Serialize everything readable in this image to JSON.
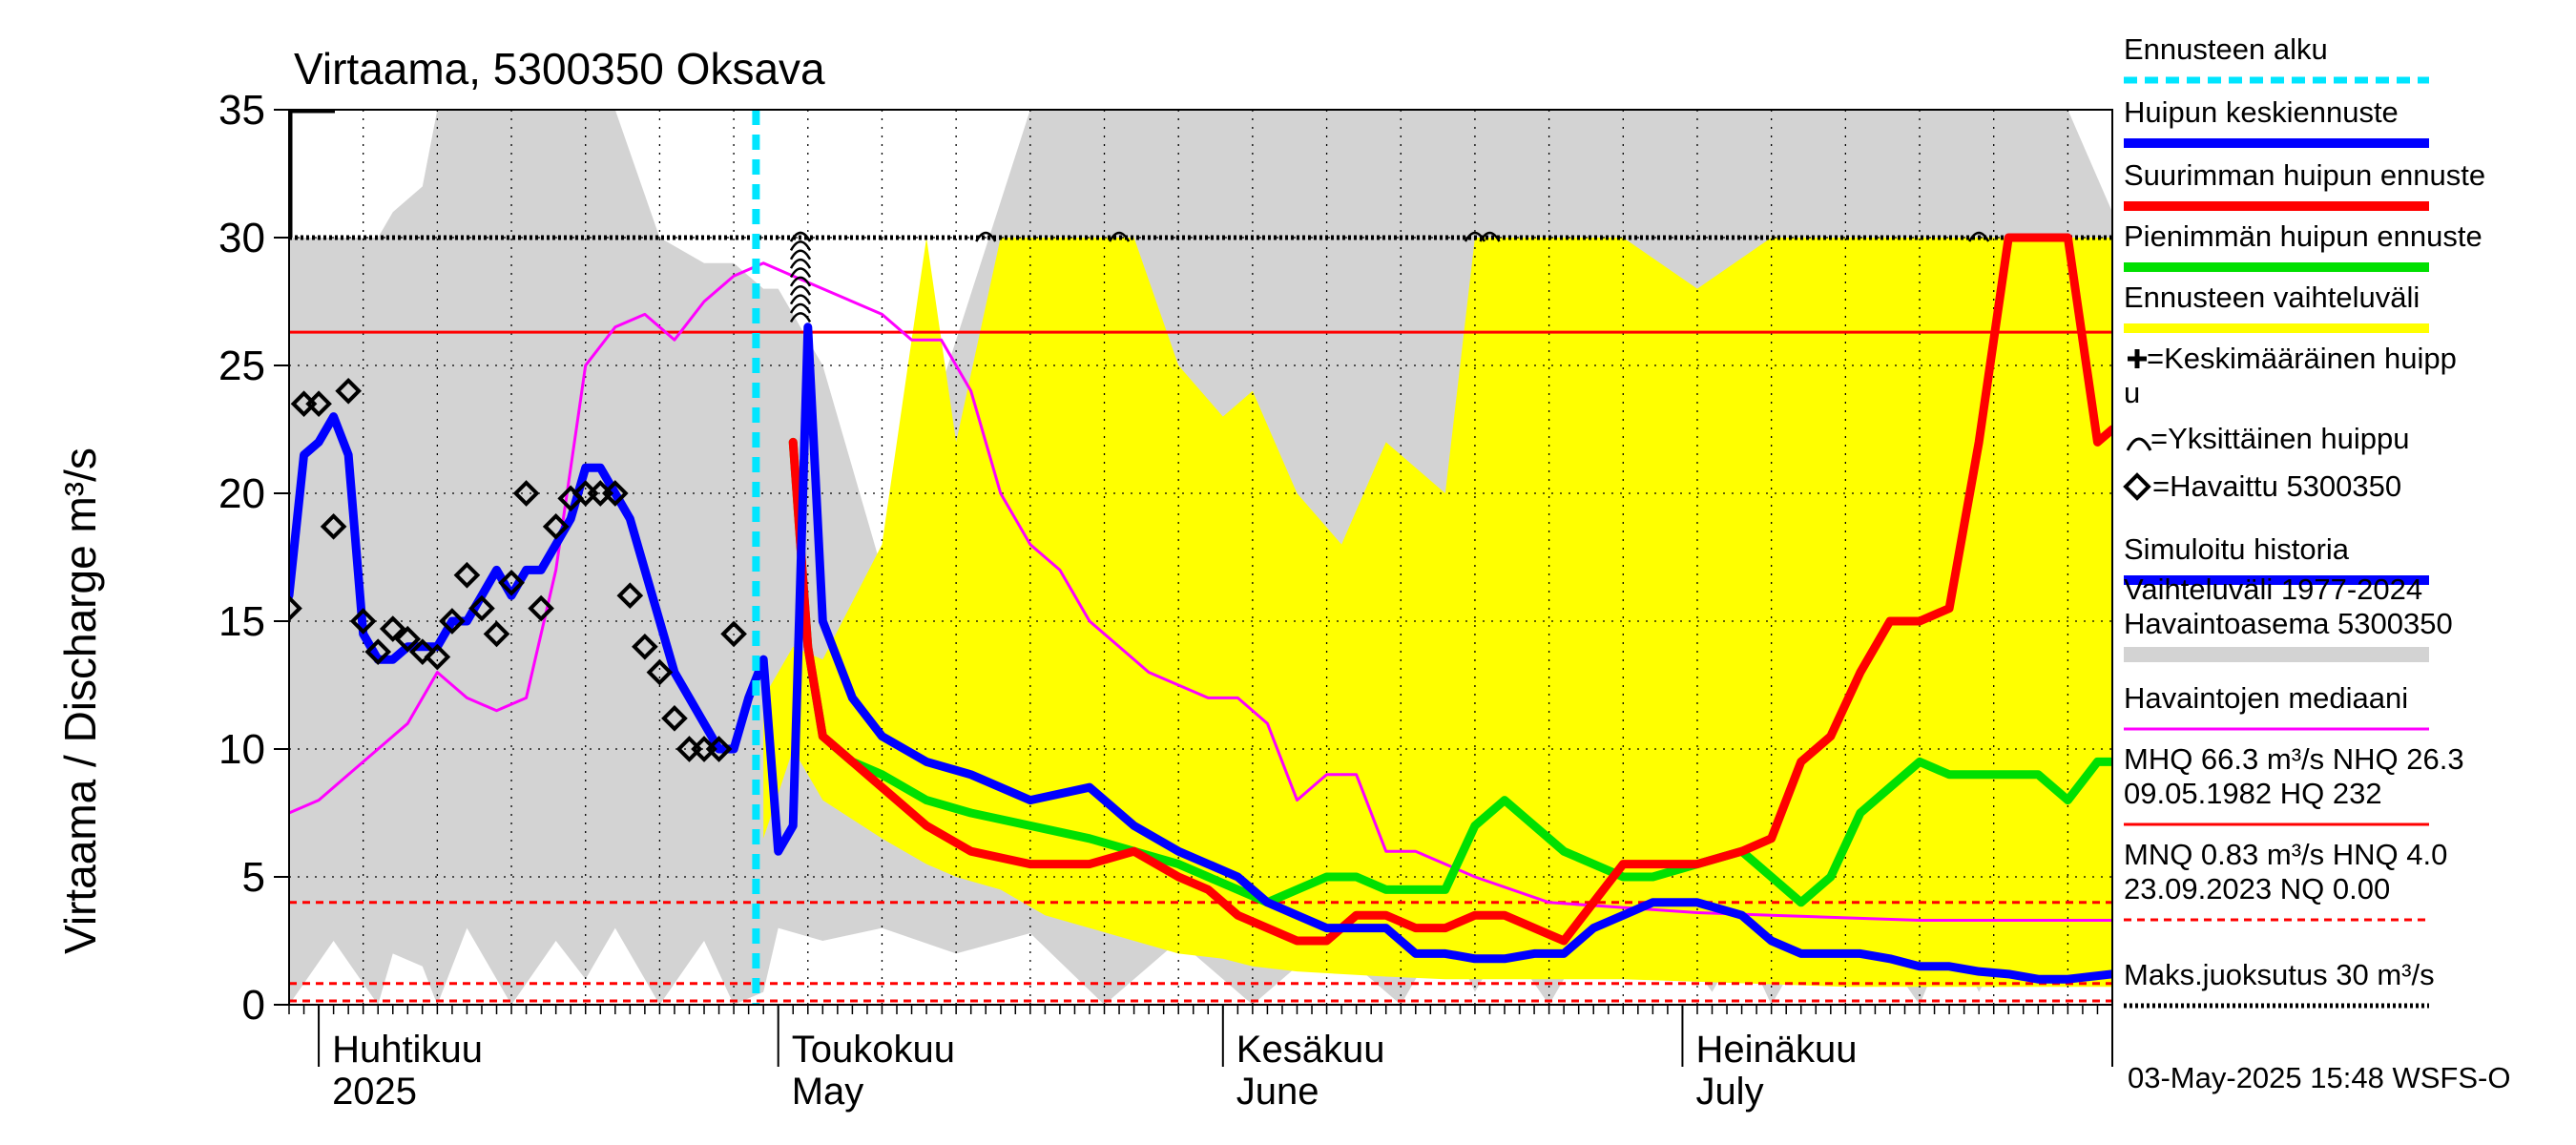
{
  "chart_data": {
    "type": "line",
    "title": "Virtaama, 5300350 Oksava",
    "ylabel": "Virtaama / Discharge   m³/s",
    "ylim": [
      0,
      35
    ],
    "yticks": [
      {
        "value": 0,
        "label": "0"
      },
      {
        "value": 5,
        "label": "5"
      },
      {
        "value": 10,
        "label": "10"
      },
      {
        "value": 15,
        "label": "15"
      },
      {
        "value": 20,
        "label": "20"
      },
      {
        "value": 25,
        "label": "25"
      },
      {
        "value": 30,
        "label": "30"
      },
      {
        "value": 35,
        "label": "35"
      }
    ],
    "x_range_days": [
      0,
      123
    ],
    "x_unit": "days since 2025-03-30",
    "month_ticks": [
      2,
      33,
      63,
      94
    ],
    "month_labels": [
      {
        "day": 2,
        "fi": "Huhtikuu",
        "en": "2025"
      },
      {
        "day": 33,
        "fi": "Toukokuu",
        "en": "May"
      },
      {
        "day": 63,
        "fi": "Kesäkuu",
        "en": "June"
      },
      {
        "day": 94,
        "fi": "Heinäkuu",
        "en": "July"
      }
    ],
    "forecast_start_day": 31.5,
    "reference_lines": [
      {
        "name": "NHQ",
        "value": 26.3,
        "style": "solid"
      },
      {
        "name": "HNQ",
        "value": 4.0,
        "style": "dashed"
      },
      {
        "name": "MNQ",
        "value": 0.83,
        "style": "dashed"
      },
      {
        "name": "NQ",
        "value": 0.0,
        "style": "dashed"
      },
      {
        "name": "Maks.juoksutus",
        "value": 30,
        "style": "dotted"
      }
    ],
    "history_band": {
      "name": "Vaihteluväli 1977-2024 Havaintoasema 5300350",
      "x": [
        0,
        3,
        6,
        7,
        9,
        10,
        12,
        15,
        18,
        20,
        22,
        25,
        28,
        30,
        32,
        33,
        36,
        40,
        45,
        50,
        55,
        60,
        65,
        70,
        75,
        78,
        80,
        82,
        85,
        88,
        90,
        93,
        96,
        98,
        100,
        103,
        105,
        107,
        110,
        112,
        114,
        116,
        118,
        120,
        123
      ],
      "low": [
        0,
        2.5,
        0,
        2,
        1.5,
        0,
        3,
        0,
        2.5,
        1,
        3,
        0,
        2.5,
        0,
        0.5,
        3,
        2.5,
        3,
        2,
        2.8,
        0,
        2.5,
        0,
        2.5,
        0,
        3,
        0.5,
        2.5,
        0,
        3,
        1.5,
        3,
        0.5,
        2.5,
        0,
        3,
        1,
        2.5,
        0,
        2.8,
        0.5,
        2.5,
        1,
        2.5,
        2
      ],
      "high": [
        30,
        30,
        30,
        31,
        32,
        35,
        35,
        35,
        35,
        35,
        35,
        30,
        29,
        29,
        28,
        28,
        25,
        17,
        26,
        35,
        35,
        35,
        35,
        35,
        35,
        35,
        35,
        35,
        35,
        35,
        35,
        35,
        35,
        35,
        35,
        35,
        35,
        35,
        35,
        35,
        35,
        35,
        35,
        35,
        31
      ]
    },
    "forecast_band": {
      "name": "Ennusteen vaihteluväli",
      "x": [
        32,
        34,
        36,
        40,
        43,
        45,
        48,
        51,
        54,
        57,
        60,
        63,
        65,
        68,
        71,
        74,
        78,
        80,
        82,
        86,
        90,
        95,
        100,
        105,
        110,
        115,
        120,
        123
      ],
      "low": [
        6.5,
        10,
        8,
        6.5,
        5.5,
        5,
        4.5,
        3.5,
        3,
        2.5,
        2,
        1.8,
        1.5,
        1.3,
        1.2,
        1.1,
        1,
        1,
        1,
        1,
        1,
        0.9,
        0.8,
        0.7,
        0.7,
        0.7,
        0.7,
        0.7
      ],
      "high": [
        12,
        14,
        13.5,
        18,
        30,
        22,
        30,
        30,
        30,
        30,
        25,
        23,
        24,
        20,
        18,
        22,
        20,
        30,
        30,
        30,
        30,
        28,
        30,
        30,
        30,
        30,
        30,
        30
      ]
    },
    "series": [
      {
        "name": "Havaintojen mediaani",
        "color": "#ff00ff",
        "x": [
          0,
          2,
          4,
          6,
          8,
          10,
          12,
          14,
          16,
          18,
          20,
          22,
          24,
          26,
          28,
          30,
          32,
          34,
          36,
          38,
          40,
          42,
          44,
          46,
          48,
          50,
          52,
          54,
          56,
          58,
          60,
          62,
          64,
          66,
          68,
          70,
          72,
          74,
          76,
          78,
          80,
          85,
          90,
          95,
          100,
          105,
          110,
          115,
          123
        ],
        "y": [
          7.5,
          8,
          9,
          10,
          11,
          13,
          12,
          11.5,
          12,
          17,
          25,
          26.5,
          27,
          26,
          27.5,
          28.5,
          29,
          28.5,
          28,
          27.5,
          27,
          26,
          26,
          24,
          20,
          18,
          17,
          15,
          14,
          13,
          12.5,
          12,
          12,
          11,
          8,
          9,
          9,
          6,
          6,
          5.5,
          5,
          4,
          3.8,
          3.6,
          3.5,
          3.4,
          3.3,
          3.3,
          3.3
        ]
      },
      {
        "name": "Pienimmän huipun ennuste",
        "color": "#00e000",
        "x": [
          34,
          35,
          36,
          38,
          40,
          43,
          46,
          50,
          54,
          57,
          60,
          62,
          64,
          66,
          68,
          70,
          72,
          74,
          76,
          78,
          80,
          82,
          84,
          86,
          88,
          90,
          92,
          95,
          98,
          100,
          102,
          104,
          106,
          108,
          110,
          112,
          114,
          116,
          118,
          120,
          122,
          123
        ],
        "y": [
          22,
          14,
          10.5,
          9.5,
          9,
          8,
          7.5,
          7,
          6.5,
          6,
          5.5,
          5,
          4.5,
          4,
          4.5,
          5,
          5,
          4.5,
          4.5,
          4.5,
          7,
          8,
          7,
          6,
          5.5,
          5,
          5,
          5.5,
          6,
          5,
          4,
          5,
          7.5,
          8.5,
          9.5,
          9,
          9,
          9,
          9,
          8,
          9.5,
          9.5
        ]
      },
      {
        "name": "Suurimman huipun ennuste",
        "color": "#ff0000",
        "x": [
          34,
          35,
          36,
          38,
          40,
          43,
          46,
          50,
          54,
          57,
          60,
          62,
          64,
          66,
          68,
          70,
          72,
          74,
          76,
          78,
          80,
          82,
          84,
          86,
          88,
          90,
          92,
          95,
          98,
          100,
          102,
          104,
          106,
          108,
          110,
          112,
          114,
          116,
          118,
          120,
          122,
          123
        ],
        "y": [
          22,
          14,
          10.5,
          9.5,
          8.5,
          7,
          6,
          5.5,
          5.5,
          6,
          5,
          4.5,
          3.5,
          3,
          2.5,
          2.5,
          3.5,
          3.5,
          3,
          3,
          3.5,
          3.5,
          3,
          2.5,
          4,
          5.5,
          5.5,
          5.5,
          6,
          6.5,
          9.5,
          10.5,
          13,
          15,
          15,
          15.5,
          22,
          30,
          30,
          30,
          22,
          22.5
        ]
      },
      {
        "name": "Huipun keskiennuste",
        "color": "#0000ff",
        "x": [
          0,
          1,
          2,
          3,
          4,
          5,
          6,
          7,
          8,
          9,
          10,
          11,
          12,
          13,
          14,
          15,
          16,
          17,
          18,
          19,
          20,
          21,
          22,
          23,
          24,
          25,
          26,
          27,
          28,
          29,
          30,
          31,
          32,
          33,
          34,
          35,
          36,
          38,
          40,
          43,
          46,
          50,
          54,
          57,
          60,
          62,
          64,
          66,
          68,
          70,
          72,
          74,
          76,
          78,
          80,
          82,
          84,
          86,
          88,
          90,
          92,
          95,
          98,
          100,
          102,
          104,
          106,
          108,
          110,
          112,
          114,
          116,
          118,
          120,
          123
        ],
        "y": [
          16,
          21.5,
          22,
          23,
          21.5,
          14.5,
          13.5,
          13.5,
          14,
          14,
          14,
          15,
          15,
          16,
          17,
          16,
          17,
          17,
          18,
          19,
          21,
          21,
          20,
          19,
          17,
          15,
          13,
          12,
          11,
          10,
          10,
          12,
          13.5,
          6,
          7,
          26.5,
          15,
          12,
          10.5,
          9.5,
          9,
          8,
          8.5,
          7,
          6,
          5.5,
          5,
          4,
          3.5,
          3,
          3,
          3,
          2,
          2,
          1.8,
          1.8,
          2,
          2,
          3,
          3.5,
          4,
          4,
          3.5,
          2.5,
          2,
          2,
          2,
          1.8,
          1.5,
          1.5,
          1.3,
          1.2,
          1,
          1,
          1.2
        ]
      }
    ],
    "observed": {
      "name": "Havaittu 5300350",
      "x": [
        0,
        1,
        2,
        3,
        4,
        5,
        6,
        7,
        8,
        9,
        10,
        11,
        12,
        13,
        14,
        15,
        16,
        17,
        18,
        19,
        20,
        21,
        22,
        23,
        24,
        25,
        26,
        27,
        28,
        29,
        30,
        31,
        32
      ],
      "y": [
        15.5,
        23.5,
        23.5,
        18.7,
        24,
        15,
        13.8,
        14.7,
        14.3,
        13.8,
        13.6,
        15,
        16.8,
        15.5,
        14.5,
        16.5,
        20,
        15.5,
        18.7,
        19.8,
        20,
        20,
        20,
        16,
        14,
        13,
        11.2,
        10,
        10,
        10,
        14.5,
        null,
        null
      ]
    },
    "peaks_markers_days": [
      34.5,
      47,
      56,
      80,
      81,
      114
    ],
    "peak_level": 30,
    "legend": [
      {
        "label": "Ennusteen alku",
        "color": "#00e5ff",
        "style": "dotted-thick"
      },
      {
        "label": "Huipun keskiennuste",
        "color": "#0000ff",
        "style": "thick"
      },
      {
        "label": "Suurimman huipun ennuste",
        "color": "#ff0000",
        "style": "thick"
      },
      {
        "label": "Pienimmän huipun ennuste",
        "color": "#00e000",
        "style": "thick"
      },
      {
        "label": "Ennusteen vaihteluväli",
        "color": "#ffff00",
        "style": "thick"
      },
      {
        "label": "=Keskimääräinen huipp",
        "label2": "u",
        "color": "#000000",
        "style": "plus"
      },
      {
        "label": "=Yksittäinen huippu",
        "color": "#000000",
        "style": "arc"
      },
      {
        "label": "=Havaittu 5300350",
        "color": "#000000",
        "style": "diamond"
      },
      {
        "label": "Simuloitu historia",
        "color": "#0000ff",
        "style": "thick"
      },
      {
        "label": "Vaihteluväli 1977-2024",
        "label2": " Havaintoasema 5300350",
        "color": "#d3d3d3",
        "style": "thick"
      },
      {
        "label": "Havaintojen mediaani",
        "color": "#ff00ff",
        "style": "thin"
      },
      {
        "label": "MHQ 66.3 m³/s NHQ 26.3",
        "label2": "09.05.1982 HQ  232",
        "color": "#ff0000",
        "style": "thin"
      },
      {
        "label": "MNQ 0.83 m³/s HNQ  4.0",
        "label2": "23.09.2023 NQ 0.00",
        "color": "#ff0000",
        "style": "dashed"
      },
      {
        "label": "Maks.juoksutus 30 m³/s",
        "color": "#000000",
        "style": "dotted"
      }
    ],
    "footer": "03-May-2025 15:48 WSFS-O"
  }
}
